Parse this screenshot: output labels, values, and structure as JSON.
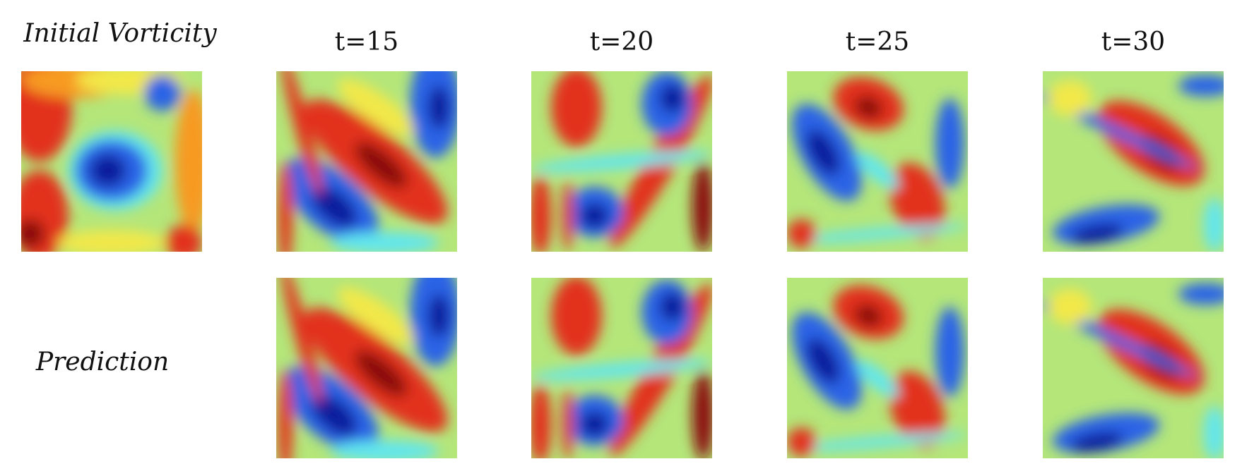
{
  "labels": {
    "initial": "Initial Vorticity",
    "prediction": "Prediction"
  },
  "columns": [
    "t=15",
    "t=20",
    "t=25",
    "t=30"
  ]
}
